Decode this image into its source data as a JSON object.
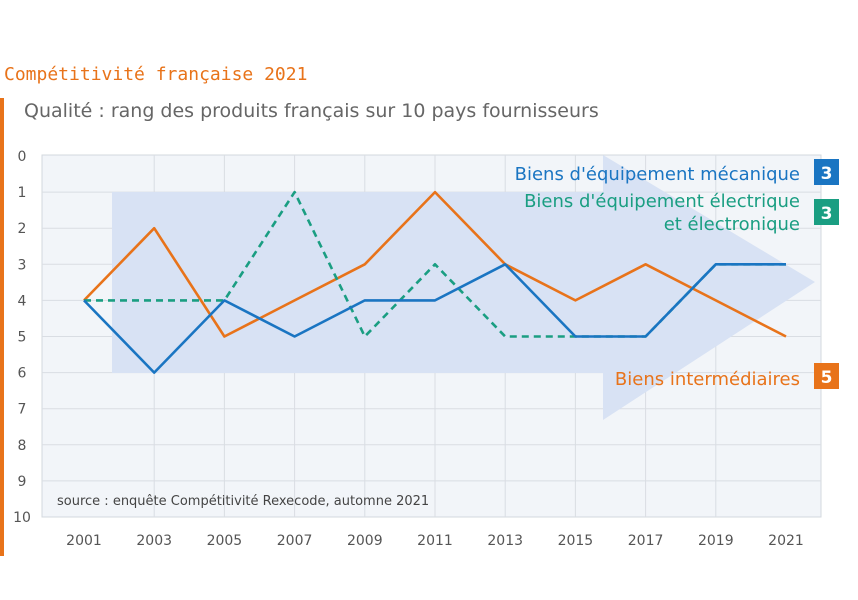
{
  "kicker": "Compétitivité française 2021",
  "subtitle": "Qualité : rang des produits français sur 10 pays fournisseurs",
  "source": "source : enquête Compétitivité Rexecode, automne 2021",
  "chart_data": {
    "type": "line",
    "title": "Qualité : rang des produits français sur 10 pays fournisseurs",
    "x": [
      "2001",
      "2003",
      "2005",
      "2007",
      "2009",
      "2011",
      "2013",
      "2015",
      "2017",
      "2019",
      "2021"
    ],
    "ylim": [
      0,
      10
    ],
    "y_inverted": true,
    "y_ticks": [
      "0",
      "1",
      "2",
      "3",
      "4",
      "5",
      "6",
      "7",
      "8",
      "9",
      "10"
    ],
    "grid": true,
    "series": [
      {
        "name": "Biens d'équipement mécanique",
        "color": "#1a75c2",
        "dashed": false,
        "values": [
          4,
          6,
          4,
          5,
          4,
          4,
          3,
          5,
          5,
          3,
          3
        ],
        "badge": "3"
      },
      {
        "name_line1": "Biens d'équipement électrique",
        "name_line2": "et électronique",
        "color": "#1a9e82",
        "dashed": true,
        "values": [
          4,
          4,
          4,
          1,
          5,
          3,
          5,
          5,
          5,
          3,
          3
        ],
        "badge": "3"
      },
      {
        "name": "Biens intermédiaires",
        "color": "#e8731a",
        "dashed": false,
        "values": [
          4,
          2,
          5,
          4,
          3,
          1,
          3,
          4,
          3,
          4,
          5
        ],
        "badge": "5"
      }
    ]
  }
}
